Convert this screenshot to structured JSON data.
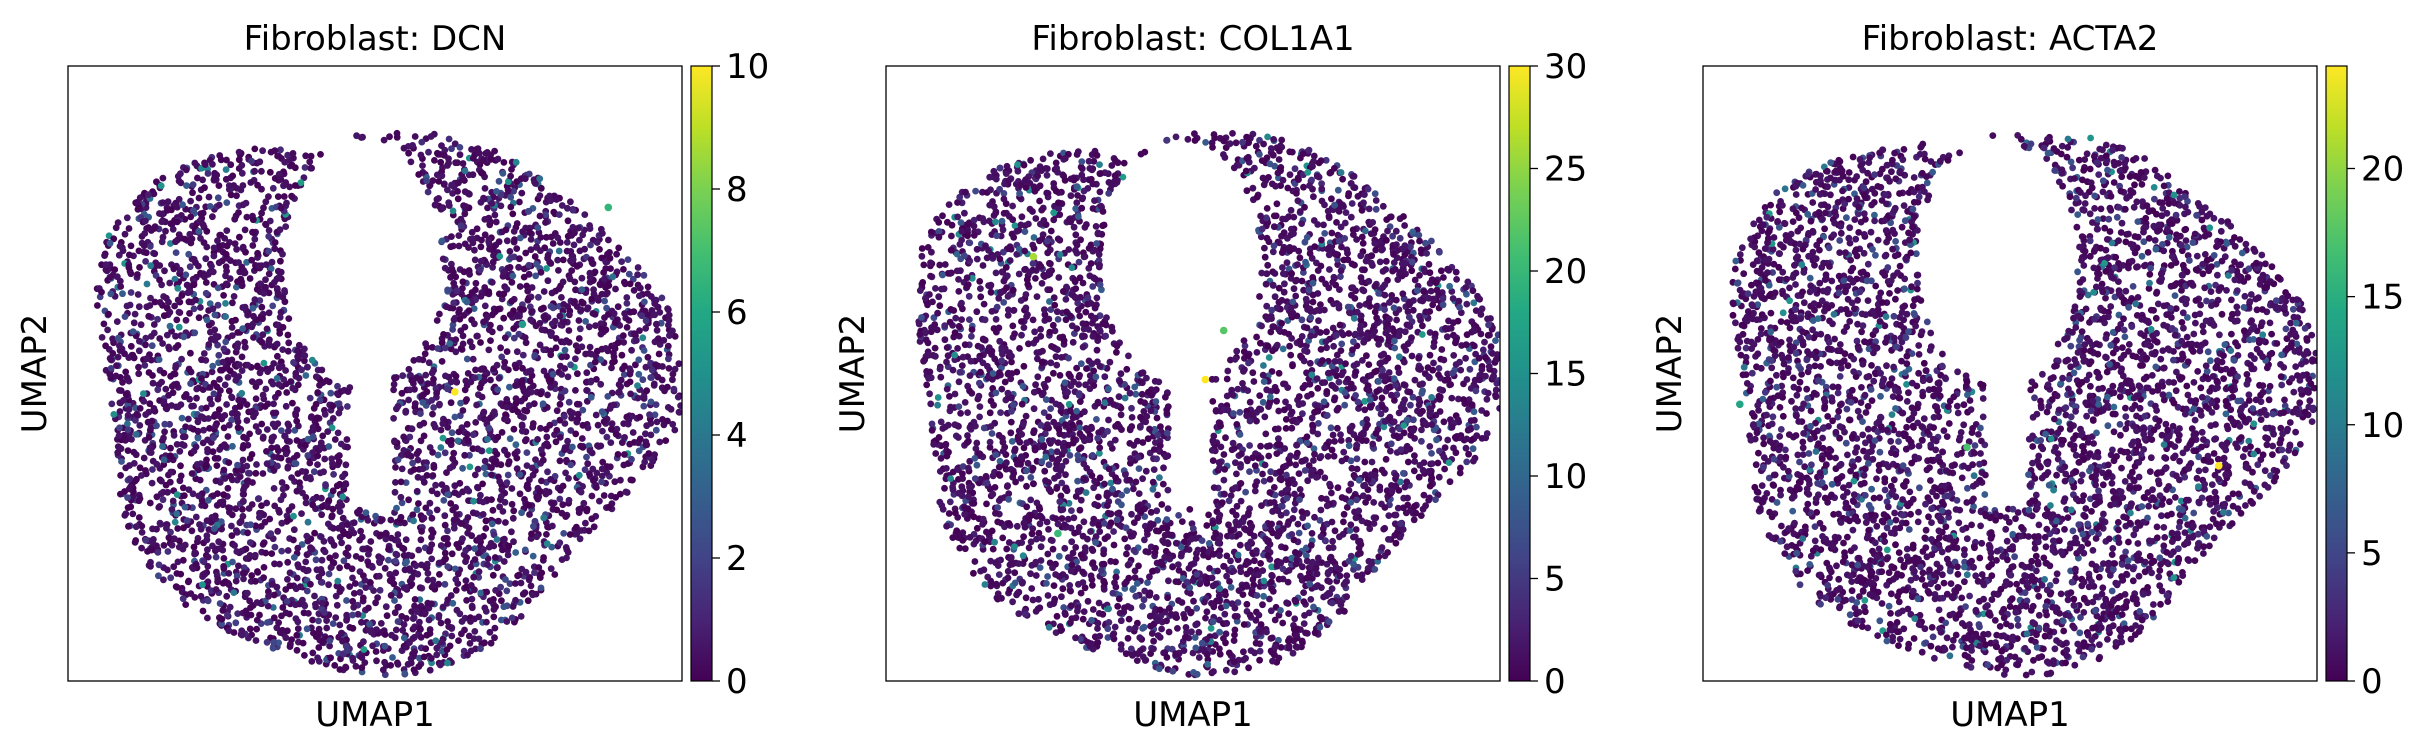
{
  "figure": {
    "colormap": "viridis"
  },
  "chart_data": [
    {
      "type": "scatter",
      "title": "Fibroblast: DCN",
      "xlabel": "UMAP1",
      "ylabel": "UMAP2",
      "color_range": [
        0,
        10
      ],
      "colorbar_ticks": [
        "0",
        "2",
        "4",
        "6",
        "8",
        "10"
      ],
      "n_points": 4200,
      "axis_ticks_visible": false,
      "grid": false,
      "highlights": [
        {
          "x": 0.63,
          "y": 0.47,
          "value": 10
        },
        {
          "x": 0.88,
          "y": 0.77,
          "value": 6.5
        },
        {
          "x": 0.74,
          "y": 0.58,
          "value": 5.5
        }
      ]
    },
    {
      "type": "scatter",
      "title": "Fibroblast: COL1A1",
      "xlabel": "UMAP1",
      "ylabel": "UMAP2",
      "color_range": [
        0,
        30
      ],
      "colorbar_ticks": [
        "0",
        "5",
        "10",
        "15",
        "20",
        "25",
        "30"
      ],
      "n_points": 4200,
      "axis_ticks_visible": false,
      "grid": false,
      "highlights": [
        {
          "x": 0.52,
          "y": 0.49,
          "value": 30
        },
        {
          "x": 0.55,
          "y": 0.57,
          "value": 22
        },
        {
          "x": 0.28,
          "y": 0.24,
          "value": 20
        },
        {
          "x": 0.24,
          "y": 0.69,
          "value": 26
        }
      ]
    },
    {
      "type": "scatter",
      "title": "Fibroblast: ACTA2",
      "xlabel": "UMAP1",
      "ylabel": "UMAP2",
      "color_range": [
        0,
        24
      ],
      "colorbar_ticks": [
        "0",
        "5",
        "10",
        "15",
        "20"
      ],
      "n_points": 4200,
      "axis_ticks_visible": false,
      "grid": false,
      "highlights": [
        {
          "x": 0.84,
          "y": 0.35,
          "value": 24
        },
        {
          "x": 0.43,
          "y": 0.38,
          "value": 17
        },
        {
          "x": 0.06,
          "y": 0.45,
          "value": 14
        }
      ]
    }
  ]
}
